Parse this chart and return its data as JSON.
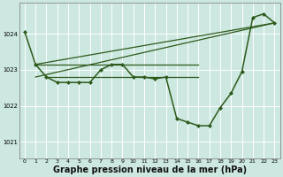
{
  "background_color": "#cce8e0",
  "grid_color": "#ffffff",
  "line_color": "#2d5a1b",
  "marker_color": "#2d5a1b",
  "xlabel": "Graphe pression niveau de la mer (hPa)",
  "xlabel_fontsize": 7,
  "ylabel_ticks": [
    1021,
    1022,
    1023,
    1024
  ],
  "xlim": [
    -0.5,
    23.5
  ],
  "ylim": [
    1020.55,
    1024.85
  ],
  "xticks": [
    0,
    1,
    2,
    3,
    4,
    5,
    6,
    7,
    8,
    9,
    10,
    11,
    12,
    13,
    14,
    15,
    16,
    17,
    18,
    19,
    20,
    21,
    22,
    23
  ],
  "series": [
    {
      "x": [
        0,
        1,
        2,
        3,
        4,
        5,
        6,
        7,
        8,
        9,
        10,
        11,
        12,
        13,
        14,
        15,
        16,
        17,
        18,
        19,
        20,
        21,
        22,
        23
      ],
      "y": [
        1024.05,
        1023.15,
        1022.8,
        1022.65,
        1022.65,
        1022.65,
        1022.65,
        1023.0,
        1023.15,
        1023.15,
        1022.8,
        1022.8,
        1022.75,
        1022.8,
        1021.65,
        1021.55,
        1021.45,
        1021.45,
        1021.95,
        1022.35,
        1022.95,
        1024.45,
        1024.55,
        1024.3
      ],
      "marker": "D",
      "markersize": 2.0,
      "linewidth": 1.1,
      "zorder": 4
    },
    {
      "x": [
        1,
        16
      ],
      "y": [
        1023.15,
        1023.15
      ],
      "marker": null,
      "linewidth": 0.9,
      "zorder": 2
    },
    {
      "x": [
        1,
        23
      ],
      "y": [
        1023.15,
        1024.3
      ],
      "marker": null,
      "linewidth": 0.9,
      "zorder": 2
    },
    {
      "x": [
        1,
        23
      ],
      "y": [
        1022.8,
        1024.3
      ],
      "marker": null,
      "linewidth": 0.9,
      "zorder": 2
    },
    {
      "x": [
        2,
        16
      ],
      "y": [
        1022.8,
        1022.8
      ],
      "marker": null,
      "linewidth": 0.9,
      "zorder": 2
    }
  ]
}
